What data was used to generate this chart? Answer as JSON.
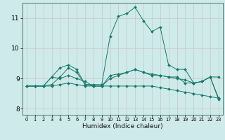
{
  "xlabel": "Humidex (Indice chaleur)",
  "bg_color": "#ceeaea",
  "grid_color": "#c8c8c8",
  "line_color": "#1a7a6a",
  "ylim": [
    7.8,
    11.5
  ],
  "xlim": [
    -0.5,
    23.5
  ],
  "yticks": [
    8,
    9,
    10,
    11
  ],
  "xticks": [
    0,
    1,
    2,
    3,
    4,
    5,
    6,
    7,
    8,
    9,
    10,
    11,
    12,
    13,
    14,
    15,
    16,
    17,
    18,
    19,
    20,
    21,
    22,
    23
  ],
  "series": [
    {
      "x": [
        0,
        1,
        2,
        3,
        4,
        5,
        6,
        7,
        8,
        9,
        10,
        11,
        12,
        13,
        14,
        15,
        16,
        17,
        18,
        19,
        20,
        21,
        22,
        23
      ],
      "y": [
        8.75,
        8.75,
        8.75,
        9.05,
        9.35,
        9.45,
        9.3,
        8.8,
        8.8,
        8.8,
        10.4,
        11.05,
        11.15,
        11.35,
        10.9,
        10.55,
        10.7,
        9.45,
        9.3,
        9.3,
        8.85,
        8.9,
        9.05,
        8.3
      ]
    },
    {
      "x": [
        0,
        1,
        2,
        3,
        4,
        5,
        6,
        7,
        8,
        9,
        10,
        11,
        12,
        13,
        14,
        15,
        16,
        17,
        18,
        19,
        20,
        21,
        22,
        23
      ],
      "y": [
        8.75,
        8.75,
        8.75,
        9.05,
        9.0,
        9.1,
        9.0,
        8.9,
        8.75,
        8.75,
        9.0,
        9.1,
        9.2,
        9.3,
        9.2,
        9.1,
        9.1,
        9.05,
        9.0,
        8.95,
        8.85,
        8.9,
        9.05,
        9.05
      ]
    },
    {
      "x": [
        0,
        1,
        2,
        3,
        4,
        5,
        6,
        7,
        8,
        9,
        10,
        11,
        12,
        13,
        14,
        15,
        16,
        17,
        18,
        19,
        20,
        21,
        22,
        23
      ],
      "y": [
        8.75,
        8.75,
        8.75,
        8.75,
        8.8,
        8.85,
        8.8,
        8.75,
        8.75,
        8.75,
        8.75,
        8.75,
        8.75,
        8.75,
        8.75,
        8.75,
        8.7,
        8.65,
        8.6,
        8.55,
        8.5,
        8.45,
        8.4,
        8.35
      ]
    },
    {
      "x": [
        0,
        1,
        2,
        3,
        4,
        5,
        6,
        7,
        8,
        9,
        10,
        11,
        12,
        13,
        14,
        15,
        16,
        17,
        18,
        19,
        20,
        21,
        22,
        23
      ],
      "y": [
        8.75,
        8.75,
        8.75,
        8.8,
        9.05,
        9.35,
        9.2,
        8.8,
        8.75,
        8.75,
        9.1,
        9.15,
        9.2,
        9.3,
        9.2,
        9.15,
        9.1,
        9.05,
        9.05,
        8.85,
        8.85,
        8.9,
        9.05,
        8.35
      ]
    }
  ]
}
